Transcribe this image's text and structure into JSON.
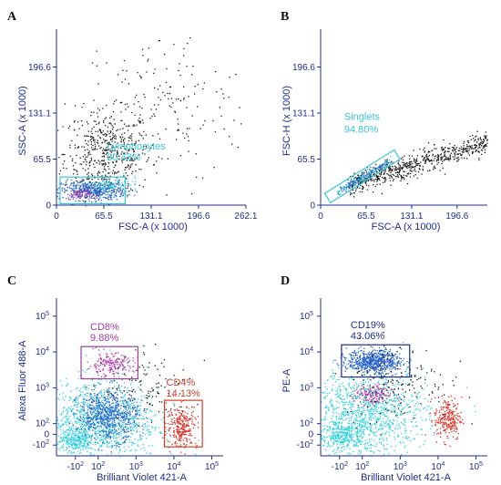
{
  "colors": {
    "axis": "#1f2d8c",
    "gate_cyan": "#38c4d8",
    "gate_purple": "#9b3e9e",
    "gate_red": "#c8422a",
    "dot_black": "#1a1a1a",
    "dot_cyan": "#2fd0e0",
    "dot_blue": "#2a63c8",
    "dot_magenta": "#b040a8",
    "dot_red": "#e02a1c"
  },
  "chart_data": [
    {
      "panel": "A",
      "type": "scatter",
      "xlabel": "FSC-A (x 1000)",
      "ylabel": "SSC-A (x 1000)",
      "xticks": [
        "0",
        "65.5",
        "131.1",
        "196.6",
        "262.1"
      ],
      "yticks": [
        "0",
        "65.5",
        "131.1",
        "196.6"
      ],
      "xlim": [
        0,
        262.1
      ],
      "ylim": [
        0,
        240
      ],
      "gates": [
        {
          "name": "Lymphocytes",
          "percent": "90.43%",
          "color": "#38c4d8",
          "x0": 5,
          "x1": 95,
          "y0": 2,
          "y1": 40
        }
      ],
      "populations": [
        {
          "color": "#1a1a1a",
          "n": 520,
          "cx": 70,
          "cy": 75,
          "sx": 30,
          "sy": 30
        },
        {
          "color": "#1a1a1a",
          "n": 170,
          "cx": 150,
          "cy": 140,
          "sx": 60,
          "sy": 55
        },
        {
          "color": "#2a63c8",
          "n": 480,
          "cx": 50,
          "cy": 22,
          "sx": 22,
          "sy": 7
        },
        {
          "color": "#b040a8",
          "n": 60,
          "cx": 32,
          "cy": 16,
          "sx": 8,
          "sy": 4
        },
        {
          "color": "#2fd0e0",
          "n": 90,
          "cx": 75,
          "cy": 28,
          "sx": 20,
          "sy": 6
        }
      ]
    },
    {
      "panel": "B",
      "type": "scatter",
      "xlabel": "FSC-A (x 1000)",
      "ylabel": "FSC-H (x 1000)",
      "xticks": [
        "0",
        "65.5",
        "131.1",
        "196.6"
      ],
      "yticks": [
        "0",
        "65.5",
        "131.1",
        "196.6"
      ],
      "xlim": [
        0,
        240
      ],
      "ylim": [
        0,
        240
      ],
      "gates": [
        {
          "name": "Singlets",
          "percent": "94.80%",
          "color": "#38c4d8",
          "x0": 10,
          "y0": 10,
          "x1": 110,
          "y1": 72,
          "width": 12
        }
      ],
      "populations": [
        {
          "color": "#1a1a1a",
          "n": 700,
          "diag": true,
          "xa": 40,
          "xb": 240,
          "slopeY0": 30,
          "slopeY1": 90,
          "spread": 8
        },
        {
          "color": "#2a63c8",
          "n": 140,
          "diag": true,
          "xa": 25,
          "xb": 95,
          "slopeY0": 20,
          "slopeY1": 62,
          "spread": 3
        },
        {
          "color": "#2fd0e0",
          "n": 80,
          "diag": true,
          "xa": 20,
          "xb": 100,
          "slopeY0": 16,
          "slopeY1": 64,
          "spread": 3
        }
      ]
    },
    {
      "panel": "C",
      "type": "scatter",
      "xlabel": "Brilliant Violet 421-A",
      "ylabel": "Alexa Fluor 488-A",
      "xticks_html": [
        {
          "label": "-10",
          "exp": "2",
          "v": -0.3
        },
        {
          "label": "10",
          "exp": "2",
          "v": 0.3
        },
        {
          "label": "10",
          "exp": "3",
          "v": 1.3
        },
        {
          "label": "10",
          "exp": "4",
          "v": 2.3
        },
        {
          "label": "10",
          "exp": "5",
          "v": 3.3
        }
      ],
      "yticks_html": [
        {
          "label": "-10",
          "exp": "2",
          "v": -0.3
        },
        {
          "label": "0",
          "exp": "",
          "v": 0
        },
        {
          "label": "10",
          "exp": "2",
          "v": 0.3
        },
        {
          "label": "10",
          "exp": "3",
          "v": 1.3
        },
        {
          "label": "10",
          "exp": "4",
          "v": 2.3
        },
        {
          "label": "10",
          "exp": "5",
          "v": 3.3
        }
      ],
      "xlim": [
        -0.8,
        3.6
      ],
      "ylim": [
        -0.6,
        3.6
      ],
      "gates": [
        {
          "name": "CD8%",
          "percent": "9.88%",
          "color": "#9b3e9e",
          "x0": -0.15,
          "x1": 1.35,
          "y0": 1.55,
          "y1": 2.45,
          "labelPos": "above"
        },
        {
          "name": "CD4%",
          "percent": "14.13%",
          "color": "#c8422a",
          "x0": 2.05,
          "x1": 3.05,
          "y0": -0.35,
          "y1": 0.95,
          "labelPos": "above"
        }
      ],
      "populations": [
        {
          "color": "#2fd0e0",
          "n": 1100,
          "cx": 0.3,
          "cy": 0.4,
          "sx": 0.8,
          "sy": 0.55
        },
        {
          "color": "#2fd0e0",
          "n": 250,
          "cx": -0.3,
          "cy": -0.15,
          "sx": 0.25,
          "sy": 0.2
        },
        {
          "color": "#2a63c8",
          "n": 650,
          "cx": 0.55,
          "cy": 0.55,
          "sx": 0.4,
          "sy": 0.35
        },
        {
          "color": "#b040a8",
          "n": 200,
          "cx": 0.6,
          "cy": 1.95,
          "sx": 0.3,
          "sy": 0.16
        },
        {
          "color": "#e02a1c",
          "n": 260,
          "cx": 2.5,
          "cy": 0.25,
          "sx": 0.2,
          "sy": 0.3
        },
        {
          "color": "#1a1a1a",
          "n": 110,
          "cx": 1.6,
          "cy": 1.3,
          "sx": 0.6,
          "sy": 0.45
        }
      ]
    },
    {
      "panel": "D",
      "type": "scatter",
      "xlabel": "Brilliant Violet 421-A",
      "ylabel": "PE-A",
      "xticks_html": [
        {
          "label": "-10",
          "exp": "2",
          "v": -0.3
        },
        {
          "label": "10",
          "exp": "2",
          "v": 0.3
        },
        {
          "label": "10",
          "exp": "3",
          "v": 1.3
        },
        {
          "label": "10",
          "exp": "4",
          "v": 2.3
        },
        {
          "label": "10",
          "exp": "5",
          "v": 3.3
        }
      ],
      "yticks_html": [
        {
          "label": "-10",
          "exp": "2",
          "v": -0.3
        },
        {
          "label": "0",
          "exp": "",
          "v": 0
        },
        {
          "label": "10",
          "exp": "2",
          "v": 0.3
        },
        {
          "label": "10",
          "exp": "3",
          "v": 1.3
        },
        {
          "label": "10",
          "exp": "4",
          "v": 2.3
        },
        {
          "label": "10",
          "exp": "5",
          "v": 3.3
        }
      ],
      "xlim": [
        -0.8,
        3.6
      ],
      "ylim": [
        -0.6,
        3.6
      ],
      "gates": [
        {
          "name": "CD19%",
          "percent": "43.06%",
          "color": "#1f2d8c",
          "x0": -0.25,
          "x1": 1.55,
          "y0": 1.6,
          "y1": 2.5,
          "labelPos": "above"
        }
      ],
      "populations": [
        {
          "color": "#2fd0e0",
          "n": 1100,
          "cx": 0.4,
          "cy": 0.6,
          "sx": 0.8,
          "sy": 0.6
        },
        {
          "color": "#2fd0e0",
          "n": 280,
          "cx": -0.2,
          "cy": 0.0,
          "sx": 0.3,
          "sy": 0.2
        },
        {
          "color": "#2a63c8",
          "n": 650,
          "cx": 0.6,
          "cy": 2.05,
          "sx": 0.35,
          "sy": 0.16
        },
        {
          "color": "#b040a8",
          "n": 170,
          "cx": 0.55,
          "cy": 1.1,
          "sx": 0.25,
          "sy": 0.15
        },
        {
          "color": "#e02a1c",
          "n": 230,
          "cx": 2.55,
          "cy": 0.45,
          "sx": 0.18,
          "sy": 0.3
        },
        {
          "color": "#1a1a1a",
          "n": 170,
          "cx": 1.2,
          "cy": 1.5,
          "sx": 0.7,
          "sy": 0.55
        }
      ]
    }
  ]
}
